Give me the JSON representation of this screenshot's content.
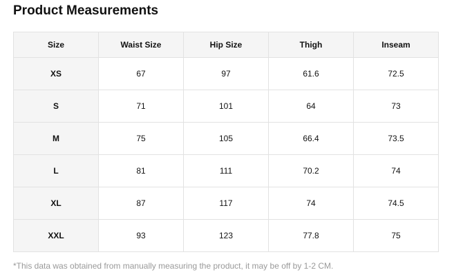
{
  "title": "Product Measurements",
  "table": {
    "headers": [
      "Size",
      "Waist Size",
      "Hip Size",
      "Thigh",
      "Inseam"
    ],
    "rows": [
      [
        "XS",
        "67",
        "97",
        "61.6",
        "72.5"
      ],
      [
        "S",
        "71",
        "101",
        "64",
        "73"
      ],
      [
        "M",
        "75",
        "105",
        "66.4",
        "73.5"
      ],
      [
        "L",
        "81",
        "111",
        "70.2",
        "74"
      ],
      [
        "XL",
        "87",
        "117",
        "74",
        "74.5"
      ],
      [
        "XXL",
        "93",
        "123",
        "77.8",
        "75"
      ]
    ]
  },
  "note": "*This data was obtained from manually measuring the product, it may be off by 1-2 CM."
}
